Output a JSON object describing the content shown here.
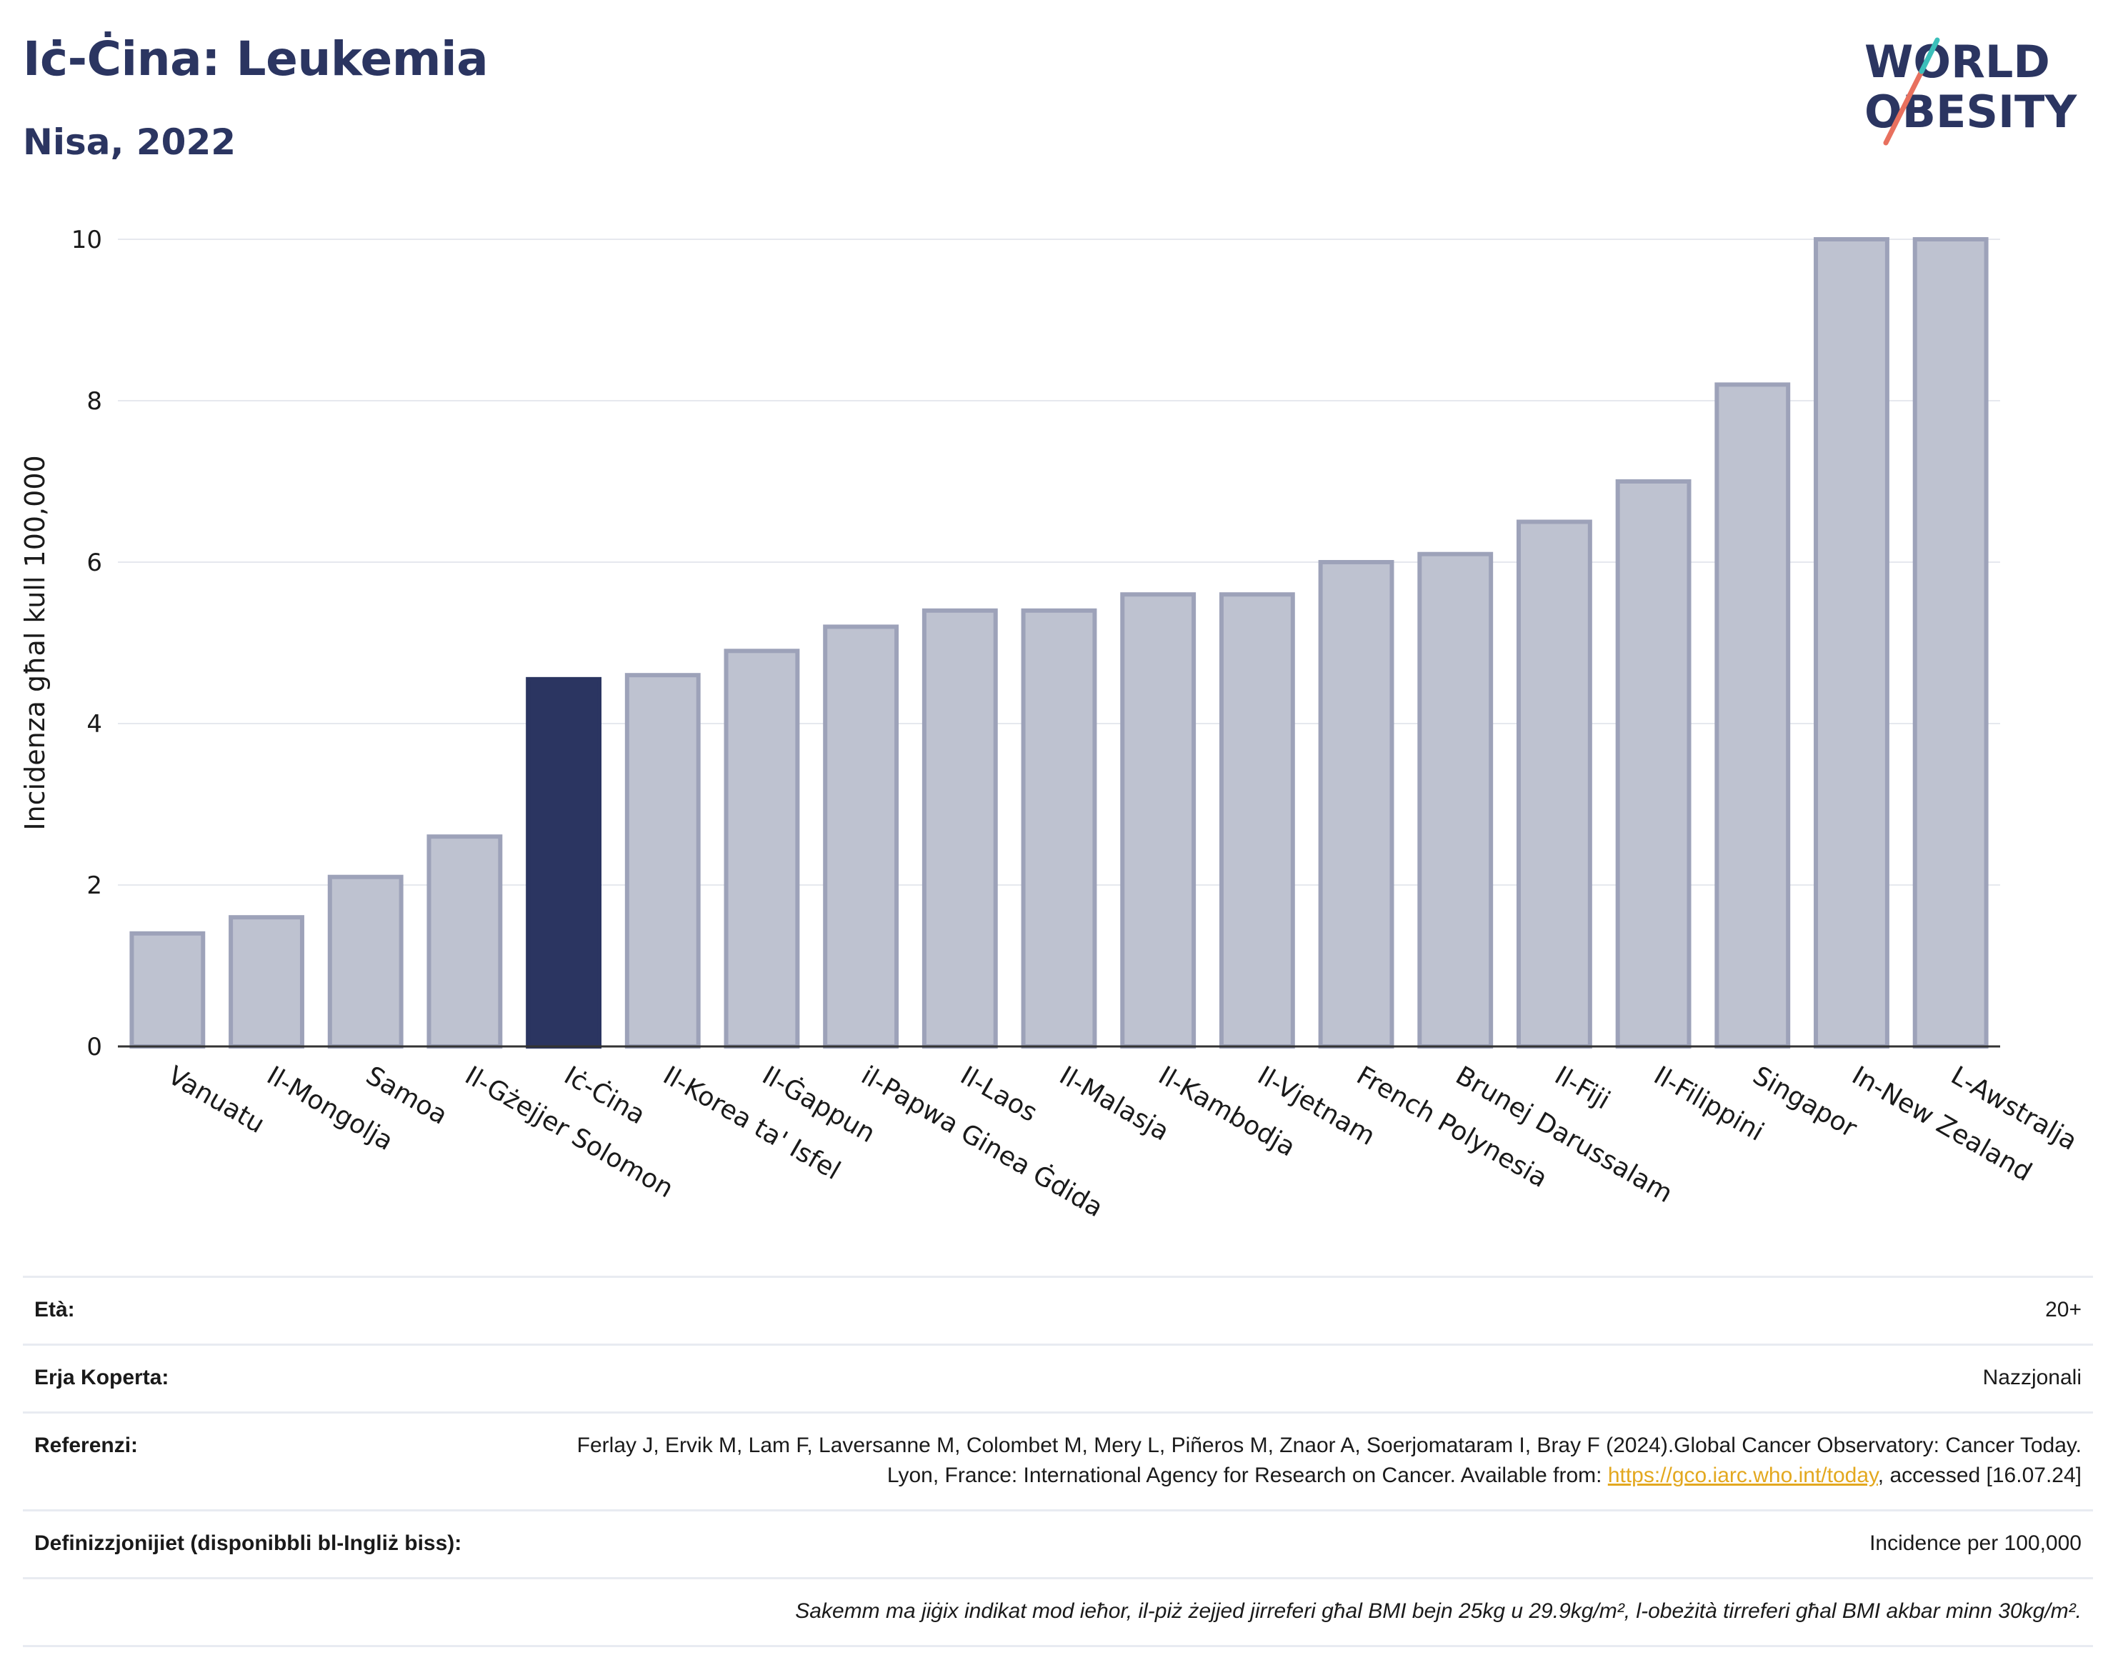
{
  "header": {
    "title": "Iċ-Ċina: Leukemia",
    "subtitle": "Nisa, 2022"
  },
  "logo": {
    "line1": "WORLD",
    "line2": "OBESITY"
  },
  "colors": {
    "highlight": "#2b3561",
    "bar": "#bec2d0",
    "bar_edge": "#9da2b9",
    "grid": "#e6e8ee",
    "link": "#e3a81f"
  },
  "chart_data": {
    "type": "bar",
    "title": "Iċ-Ċina: Leukemia",
    "subtitle": "Nisa, 2022",
    "ylabel": "Incidenza għal kull 100,000",
    "xlabel": "",
    "ylim": [
      0,
      10
    ],
    "yticks": [
      0,
      2,
      4,
      6,
      8,
      10
    ],
    "grid": true,
    "highlight_category": "Iċ-Ċina",
    "categories": [
      "Vanuatu",
      "Il-Mongolja",
      "Samoa",
      "Il-Gżejjer Solomon",
      "Iċ-Ċina",
      "Il-Korea ta' Isfel",
      "Il-Ġappun",
      "il-Papwa Ginea Ġdida",
      "Il-Laos",
      "Il-Malasja",
      "Il-Kambodja",
      "Il-Vjetnam",
      "French Polynesia",
      "Brunej Darussalam",
      "Il-Fiji",
      "Il-Filippini",
      "Singapor",
      "In-New Zealand",
      "L-Awstralja"
    ],
    "values": [
      1.4,
      1.6,
      2.1,
      2.6,
      4.55,
      4.6,
      4.9,
      5.2,
      5.4,
      5.4,
      5.6,
      5.6,
      6.0,
      6.1,
      6.5,
      7.0,
      8.2,
      10.0,
      10.0
    ]
  },
  "info": {
    "age_label": "Età:",
    "age_value": "20+",
    "area_label": "Erja Koperta:",
    "area_value": "Nazzjonali",
    "ref_label": "Referenzi:",
    "ref_text": "Ferlay J, Ervik M, Lam F, Laversanne M, Colombet M, Mery L, Piñeros M, Znaor A, Soerjomataram I, Bray F (2024).Global Cancer Observatory: Cancer Today. Lyon, France: International Agency for Research on Cancer. Available from: ",
    "ref_link": "https://gco.iarc.who.int/today",
    "ref_tail": ", accessed [16.07.24]",
    "def_label": "Definizzjonijiet (disponibbli bl-Ingliż biss):",
    "def_value": "Incidence per 100,000",
    "note": "Sakemm ma jiġix indikat mod ieħor, il-piż żejjed jirreferi għal BMI bejn 25kg u 29.9kg/m², l-obeżità tirreferi għal BMI akbar minn 30kg/m²."
  }
}
